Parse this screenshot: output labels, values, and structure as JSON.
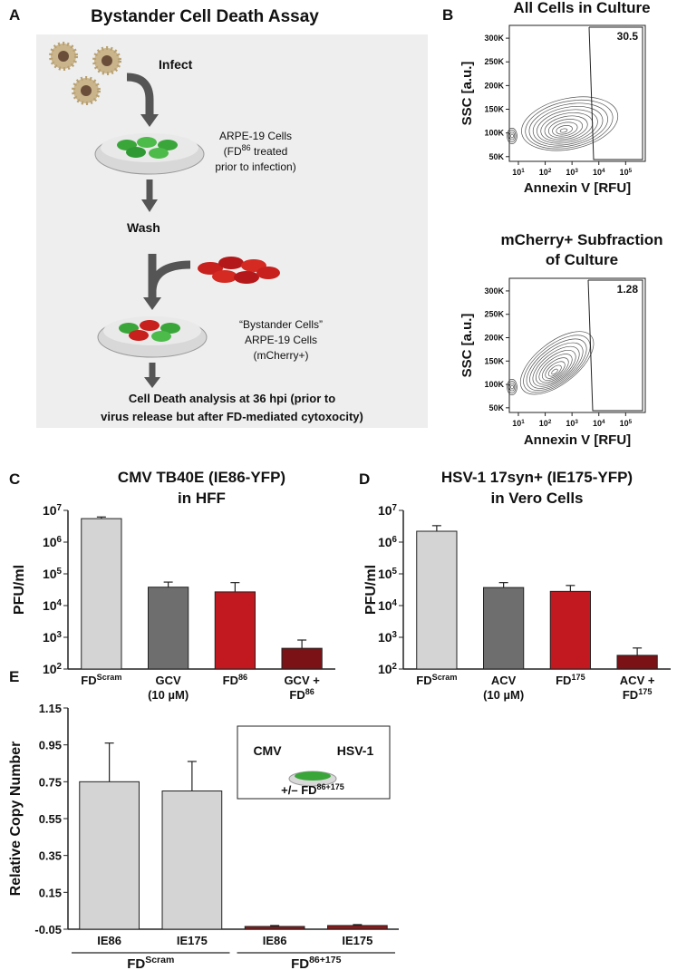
{
  "panel_labels": [
    "A",
    "B",
    "C",
    "D",
    "E"
  ],
  "diagram": {
    "title": "Bystander Cell Death Assay",
    "infect": "Infect",
    "cells": [
      "ARPE-19 Cells",
      [
        "(FD",
        {
          "sup": "86"
        },
        " treated"
      ],
      "prior to infection)"
    ],
    "wash": "Wash",
    "bystander": [
      "“Bystander Cells”",
      "ARPE-19 Cells",
      "(mCherry+)"
    ],
    "analysis": [
      "Cell Death analysis at 36 hpi (prior to",
      "virus release but after FD-mediated cytoxocity)"
    ]
  },
  "chart_data": [
    {
      "type": "contour",
      "title": [
        "All Cells in Culture"
      ],
      "x_label": "Annexin V [RFU]",
      "y_label": "SSC [a.u.]",
      "xscale": "log",
      "xlim": [
        4.6,
        540000
      ],
      "xticks": [
        {
          "value": 10,
          "label": "10",
          "power": "1"
        },
        {
          "value": 100,
          "label": "10",
          "power": "2"
        },
        {
          "value": 1000,
          "label": "10",
          "power": "3"
        },
        {
          "value": 10000,
          "label": "10",
          "power": "4"
        },
        {
          "value": 100000,
          "label": "10",
          "power": "5"
        }
      ],
      "ylim": [
        40000,
        327000
      ],
      "yticks": [
        {
          "value": 50000,
          "label": "50K"
        },
        {
          "value": 100000,
          "label": "100K"
        },
        {
          "value": 150000,
          "label": "150K"
        },
        {
          "value": 200000,
          "label": "200K"
        },
        {
          "value": 250000,
          "label": "250K"
        },
        {
          "value": 300000,
          "label": "300K"
        }
      ],
      "gate_percent": 30.5
    },
    {
      "type": "contour",
      "title": [
        "mCherry+ Subfraction",
        "of Culture"
      ],
      "x_label": "Annexin V [RFU]",
      "y_label": "SSC [a.u.]",
      "xscale": "log",
      "xlim": [
        4.6,
        540000
      ],
      "xticks": [
        {
          "value": 10,
          "label": "10",
          "power": "1"
        },
        {
          "value": 100,
          "label": "10",
          "power": "2"
        },
        {
          "value": 1000,
          "label": "10",
          "power": "3"
        },
        {
          "value": 10000,
          "label": "10",
          "power": "4"
        },
        {
          "value": 100000,
          "label": "10",
          "power": "5"
        }
      ],
      "ylim": [
        40000,
        327000
      ],
      "yticks": [
        {
          "value": 50000,
          "label": "50K"
        },
        {
          "value": 100000,
          "label": "100K"
        },
        {
          "value": 150000,
          "label": "150K"
        },
        {
          "value": 200000,
          "label": "200K"
        },
        {
          "value": 250000,
          "label": "250K"
        },
        {
          "value": 300000,
          "label": "300K"
        }
      ],
      "gate_percent": 1.28
    },
    {
      "type": "bar",
      "title": [
        "CMV TB40E (IE86-YFP)",
        "in HFF"
      ],
      "y_label": "PFU/ml",
      "yscale": "log",
      "ylim": [
        100,
        10000000
      ],
      "yticks": [
        {
          "value": 100,
          "label": "10",
          "power": "2"
        },
        {
          "value": 1000,
          "label": "10",
          "power": "3"
        },
        {
          "value": 10000,
          "label": "10",
          "power": "4"
        },
        {
          "value": 100000,
          "label": "10",
          "power": "5"
        },
        {
          "value": 1000000,
          "label": "10",
          "power": "6"
        },
        {
          "value": 10000000,
          "label": "10",
          "power": "7"
        }
      ],
      "categories": [
        [
          [
            "FD",
            {
              "sup": "Scram"
            }
          ]
        ],
        [
          [
            "GCV"
          ],
          [
            "(10 µM)"
          ]
        ],
        [
          [
            "FD",
            {
              "sup": "86"
            }
          ]
        ],
        [
          [
            "GCV +"
          ],
          [
            "FD",
            {
              "sup": "86"
            }
          ]
        ]
      ],
      "values": [
        5500000,
        38000,
        27000,
        450
      ],
      "errors": [
        700000,
        17000,
        26000,
        370
      ],
      "colors": [
        "#d4d4d4",
        "#6e6e6e",
        "#c1191f",
        "#7a1216"
      ]
    },
    {
      "type": "bar",
      "title": [
        "HSV-1 17syn+ (IE175-YFP)",
        "in Vero Cells"
      ],
      "y_label": "PFU/ml",
      "yscale": "log",
      "ylim": [
        100,
        10000000
      ],
      "yticks": [
        {
          "value": 100,
          "label": "10",
          "power": "2"
        },
        {
          "value": 1000,
          "label": "10",
          "power": "3"
        },
        {
          "value": 10000,
          "label": "10",
          "power": "4"
        },
        {
          "value": 100000,
          "label": "10",
          "power": "5"
        },
        {
          "value": 1000000,
          "label": "10",
          "power": "6"
        },
        {
          "value": 10000000,
          "label": "10",
          "power": "7"
        }
      ],
      "categories": [
        [
          [
            "FD",
            {
              "sup": "Scram"
            }
          ]
        ],
        [
          [
            "ACV"
          ],
          [
            "(10 µM)"
          ]
        ],
        [
          [
            "FD",
            {
              "sup": "175"
            }
          ]
        ],
        [
          [
            "ACV +"
          ],
          [
            "FD",
            {
              "sup": "175"
            }
          ]
        ]
      ],
      "values": [
        2200000,
        37000,
        28000,
        270
      ],
      "errors": [
        1100000,
        16000,
        15000,
        190
      ],
      "colors": [
        "#d4d4d4",
        "#6e6e6e",
        "#c1191f",
        "#7a1216"
      ]
    },
    {
      "type": "bar",
      "y_label": "Relative Copy Number",
      "yscale": "linear",
      "ylim": [
        -0.05,
        1.15
      ],
      "yticks": [
        -0.05,
        0.15,
        0.35,
        0.55,
        0.75,
        0.95,
        1.15
      ],
      "categories": [
        [
          [
            "IE86"
          ]
        ],
        [
          [
            "IE175"
          ]
        ],
        [
          [
            "IE86"
          ]
        ],
        [
          [
            "IE175"
          ]
        ]
      ],
      "values": [
        0.75,
        0.7,
        -0.035,
        -0.03
      ],
      "errors": [
        0.21,
        0.16,
        0.005,
        0.005
      ],
      "colors": [
        "#d4d4d4",
        "#d4d4d4",
        "#8b1a1a",
        "#8b1a1a"
      ],
      "groups": [
        [
          [
            "FD",
            {
              "sup": "Scram"
            }
          ]
        ],
        [
          [
            "FD",
            {
              "sup": "86+175"
            }
          ]
        ]
      ],
      "inset": {
        "left": "CMV",
        "right": "HSV-1",
        "treatment": [
          "+/– FD",
          {
            "sup": "86+175"
          }
        ]
      }
    }
  ]
}
